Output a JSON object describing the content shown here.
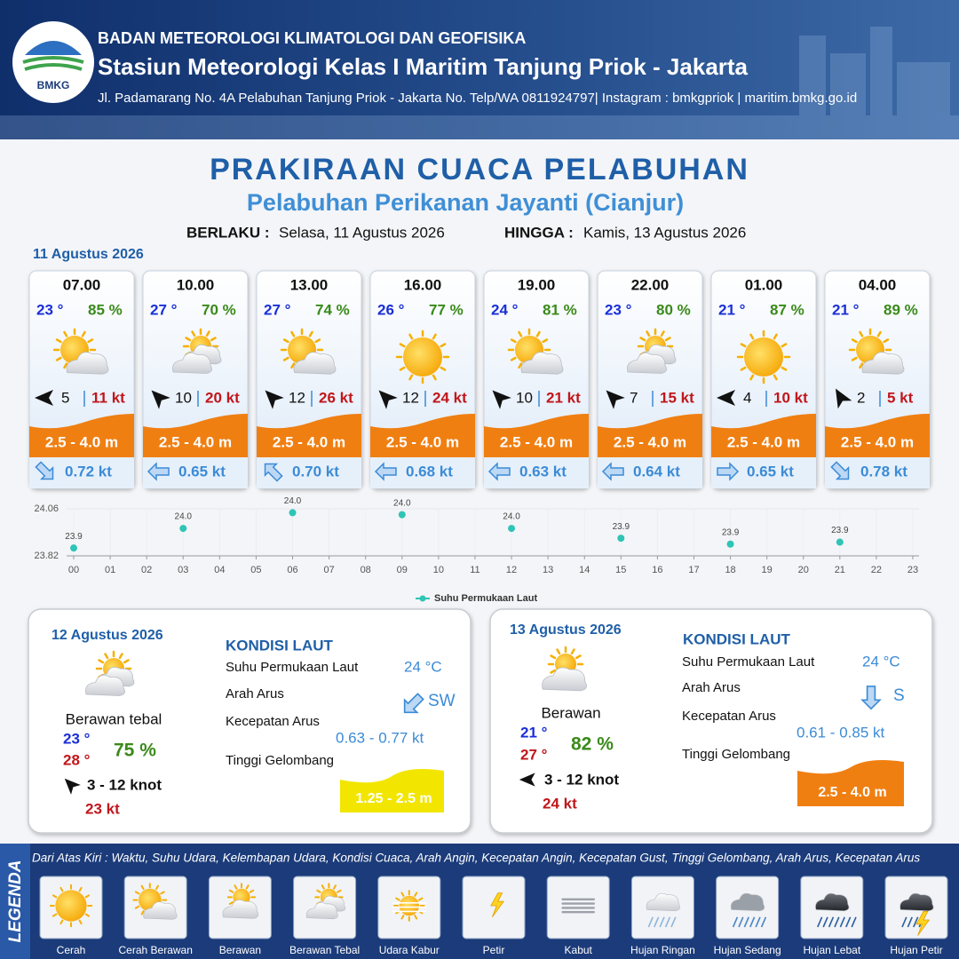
{
  "header": {
    "logo": "BMKG",
    "organization": "BADAN METEOROLOGI KLIMATOLOGI DAN GEOFISIKA",
    "station": "Stasiun Meteorologi Kelas I Maritim Tanjung Priok - Jakarta",
    "address": "Jl. Padamarang No. 4A Pelabuhan Tanjung Priok - Jakarta No. Telp/WA 0811924797| Instagram : bmkgpriok | maritim.bmkg.go.id"
  },
  "title": "PRAKIRAAN CUACA PELABUHAN",
  "subtitle": "Pelabuhan Perikanan Jayanti (Cianjur)",
  "validity": {
    "from_label": "BERLAKU :",
    "from": "Selasa, 11 Agustus 2026",
    "to_label": "HINGGA :",
    "to": "Kamis, 13 Agustus 2026"
  },
  "day1": {
    "date": "11 Agustus 2026",
    "forecasts": [
      {
        "time": "07.00",
        "temp": "23 °",
        "humidity": "85 %",
        "condition": "Cerah Berawan",
        "wind_angle": 180,
        "wind": "5",
        "gust": "11 kt",
        "wave": "2.5 - 4.0 m",
        "current_angle": 45,
        "current": "0.72 kt"
      },
      {
        "time": "10.00",
        "temp": "27 °",
        "humidity": "70 %",
        "condition": "Berawan Tebal",
        "wind_angle": 225,
        "wind": "10",
        "gust": "20 kt",
        "wave": "2.5 - 4.0 m",
        "current_angle": 180,
        "current": "0.65 kt"
      },
      {
        "time": "13.00",
        "temp": "27 °",
        "humidity": "74 %",
        "condition": "Cerah Berawan",
        "wind_angle": 225,
        "wind": "12",
        "gust": "26 kt",
        "wave": "2.5 - 4.0 m",
        "current_angle": 225,
        "current": "0.70 kt"
      },
      {
        "time": "16.00",
        "temp": "26 °",
        "humidity": "77 %",
        "condition": "Cerah",
        "wind_angle": 225,
        "wind": "12",
        "gust": "24 kt",
        "wave": "2.5 - 4.0 m",
        "current_angle": 180,
        "current": "0.68 kt"
      },
      {
        "time": "19.00",
        "temp": "24 °",
        "humidity": "81 %",
        "condition": "Cerah Berawan",
        "wind_angle": 225,
        "wind": "10",
        "gust": "21 kt",
        "wave": "2.5 - 4.0 m",
        "current_angle": 180,
        "current": "0.63 kt"
      },
      {
        "time": "22.00",
        "temp": "23 °",
        "humidity": "80 %",
        "condition": "Berawan Tebal",
        "wind_angle": 225,
        "wind": "7",
        "gust": "15 kt",
        "wave": "2.5 - 4.0 m",
        "current_angle": 180,
        "current": "0.64 kt"
      },
      {
        "time": "01.00",
        "temp": "21 °",
        "humidity": "87 %",
        "condition": "Cerah",
        "wind_angle": 180,
        "wind": "4",
        "gust": "10 kt",
        "wave": "2.5 - 4.0 m",
        "current_angle": 0,
        "current": "0.65 kt"
      },
      {
        "time": "04.00",
        "temp": "21 °",
        "humidity": "89 %",
        "condition": "Cerah Berawan",
        "wind_angle": 240,
        "wind": "2",
        "gust": "5 kt",
        "wave": "2.5 - 4.0 m",
        "current_angle": 45,
        "current": "0.78 kt"
      }
    ]
  },
  "chart_data": {
    "type": "scatter",
    "x": [
      0,
      3,
      6,
      9,
      12,
      15,
      18,
      21
    ],
    "series": [
      {
        "name": "Suhu Permukaan Laut",
        "color": "#2ec4b6",
        "values": [
          23.86,
          23.96,
          24.04,
          24.03,
          23.96,
          23.91,
          23.88,
          23.89
        ],
        "value_labels": [
          "23.9",
          "24.0",
          "24.0",
          "24.0",
          "24.0",
          "23.9",
          "23.9",
          "23.9"
        ]
      }
    ],
    "xlim": [
      0,
      23
    ],
    "xticks": [
      {
        "value": 0,
        "label": "00"
      },
      {
        "value": 1,
        "label": "01"
      },
      {
        "value": 2,
        "label": "02"
      },
      {
        "value": 3,
        "label": "03"
      },
      {
        "value": 4,
        "label": "04"
      },
      {
        "value": 5,
        "label": "05"
      },
      {
        "value": 6,
        "label": "06"
      },
      {
        "value": 7,
        "label": "07"
      },
      {
        "value": 8,
        "label": "08"
      },
      {
        "value": 9,
        "label": "09"
      },
      10,
      11,
      12,
      13,
      14,
      15,
      16,
      17,
      18,
      19,
      20,
      21,
      22,
      23
    ],
    "ylim": [
      23.82,
      24.06
    ],
    "yticks": [
      23.82,
      24.06
    ],
    "grid": true,
    "legend": "bottom"
  },
  "days": [
    {
      "date": "12 Agustus 2026",
      "condition": "Berawan Tebal",
      "condition_text": "Berawan tebal",
      "temp_min": "23 °",
      "temp_max": "28 °",
      "humidity": "75 %",
      "wind_angle": 225,
      "wind": "3  - 12 knot",
      "gust": "23 kt",
      "sea": {
        "heading": "KONDISI LAUT",
        "sst_label": "Suhu Permukaan Laut",
        "sst": "24 °C",
        "dir_label": "Arah Arus",
        "current_angle": 135,
        "dir": "SW",
        "speed_label": "Kecepatan Arus",
        "speed": "0.63  - 0.77 kt",
        "wave_label": "Tinggi Gelombang",
        "wave": "1.25 - 2.5 m",
        "wave_color": "#f2e600",
        "wave_text_color": "#ffffff"
      }
    },
    {
      "date": "13 Agustus 2026",
      "condition": "Berawan",
      "condition_text": "Berawan",
      "temp_min": "21 °",
      "temp_max": "27 °",
      "humidity": "82 %",
      "wind_angle": 180,
      "wind": "3  - 12 knot",
      "gust": "24 kt",
      "sea": {
        "heading": "KONDISI LAUT",
        "sst_label": "Suhu Permukaan Laut",
        "sst": "24 °C",
        "dir_label": "Arah Arus",
        "current_angle": 90,
        "dir": "S",
        "speed_label": "Kecepatan Arus",
        "speed": "0.61  - 0.85 kt",
        "wave_label": "Tinggi Gelombang",
        "wave": "2.5 - 4.0 m",
        "wave_color": "#f07f12",
        "wave_text_color": "#ffffff"
      }
    }
  ],
  "legend": {
    "title": "LEGENDA",
    "description": "Dari Atas Kiri : Waktu, Suhu Udara, Kelembapan Udara, Kondisi Cuaca, Arah Angin, Kecepatan Angin, Kecepatan Gust, Tinggi Gelombang, Arah Arus, Kecepatan Arus",
    "items": [
      "Cerah",
      "Cerah Berawan",
      "Berawan",
      "Berawan Tebal",
      "Udara Kabur",
      "Petir",
      "Kabut",
      "Hujan Ringan",
      "Hujan Sedang",
      "Hujan Lebat",
      "Hujan Petir"
    ]
  }
}
